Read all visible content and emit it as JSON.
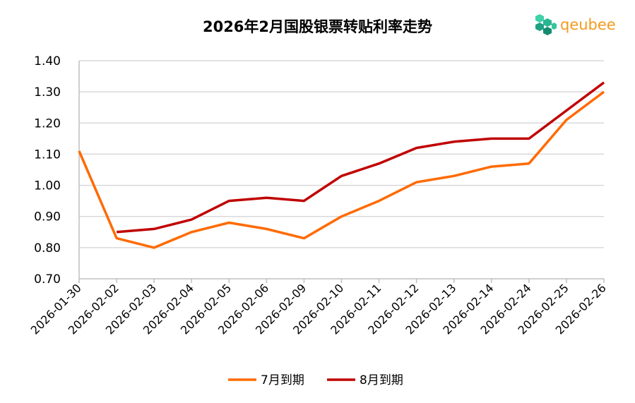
{
  "chart_data": {
    "type": "line",
    "title": "2026年2月国股银票转贴利率走势",
    "xlabel": "",
    "ylabel": "",
    "ylim": [
      0.7,
      1.4
    ],
    "yticks": [
      "0.70",
      "0.80",
      "0.90",
      "1.00",
      "1.10",
      "1.20",
      "1.30",
      "1.40"
    ],
    "grid": true,
    "legend_position": "bottom",
    "categories": [
      "2026-01-30",
      "2026-02-02",
      "2026-02-03",
      "2026-02-04",
      "2026-02-05",
      "2026-02-06",
      "2026-02-09",
      "2026-02-10",
      "2026-02-11",
      "2026-02-12",
      "2026-02-13",
      "2026-02-14",
      "2026-02-24",
      "2026-02-25",
      "2026-02-26"
    ],
    "series": [
      {
        "name": "7月到期",
        "color": "#ff6a00",
        "values": [
          1.11,
          0.83,
          0.8,
          0.85,
          0.88,
          0.86,
          0.83,
          0.9,
          0.95,
          1.01,
          1.03,
          1.06,
          1.07,
          1.21,
          1.3
        ]
      },
      {
        "name": "8月到期",
        "color": "#c00000",
        "values": [
          null,
          0.85,
          0.86,
          0.89,
          0.95,
          0.96,
          0.95,
          1.03,
          1.07,
          1.12,
          1.14,
          1.15,
          1.15,
          1.24,
          1.33
        ]
      }
    ]
  },
  "logo": {
    "text": "qeubee"
  }
}
